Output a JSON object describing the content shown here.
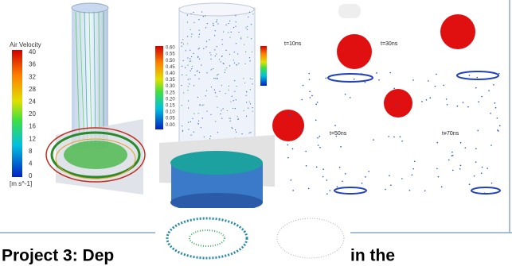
{
  "velocity_panel": {
    "title": "Air Velocity",
    "ticks": [
      "40",
      "36",
      "32",
      "28",
      "24",
      "20",
      "16",
      "12",
      "8",
      "4",
      "0"
    ],
    "unit": "[m s^-1]"
  },
  "particle_panel": {
    "ticks": [
      "0.60",
      "0.55",
      "0.50",
      "0.45",
      "0.40",
      "0.35",
      "0.30",
      "0.25",
      "0.20",
      "0.15",
      "0.10",
      "0.05",
      "0.00"
    ]
  },
  "droplet_panel": {
    "frames": [
      "t=10ns",
      "t=30ns",
      "t=50ns",
      "t=70ns"
    ]
  },
  "caption": {
    "left": "Project 3: Dep",
    "right": "in the"
  }
}
